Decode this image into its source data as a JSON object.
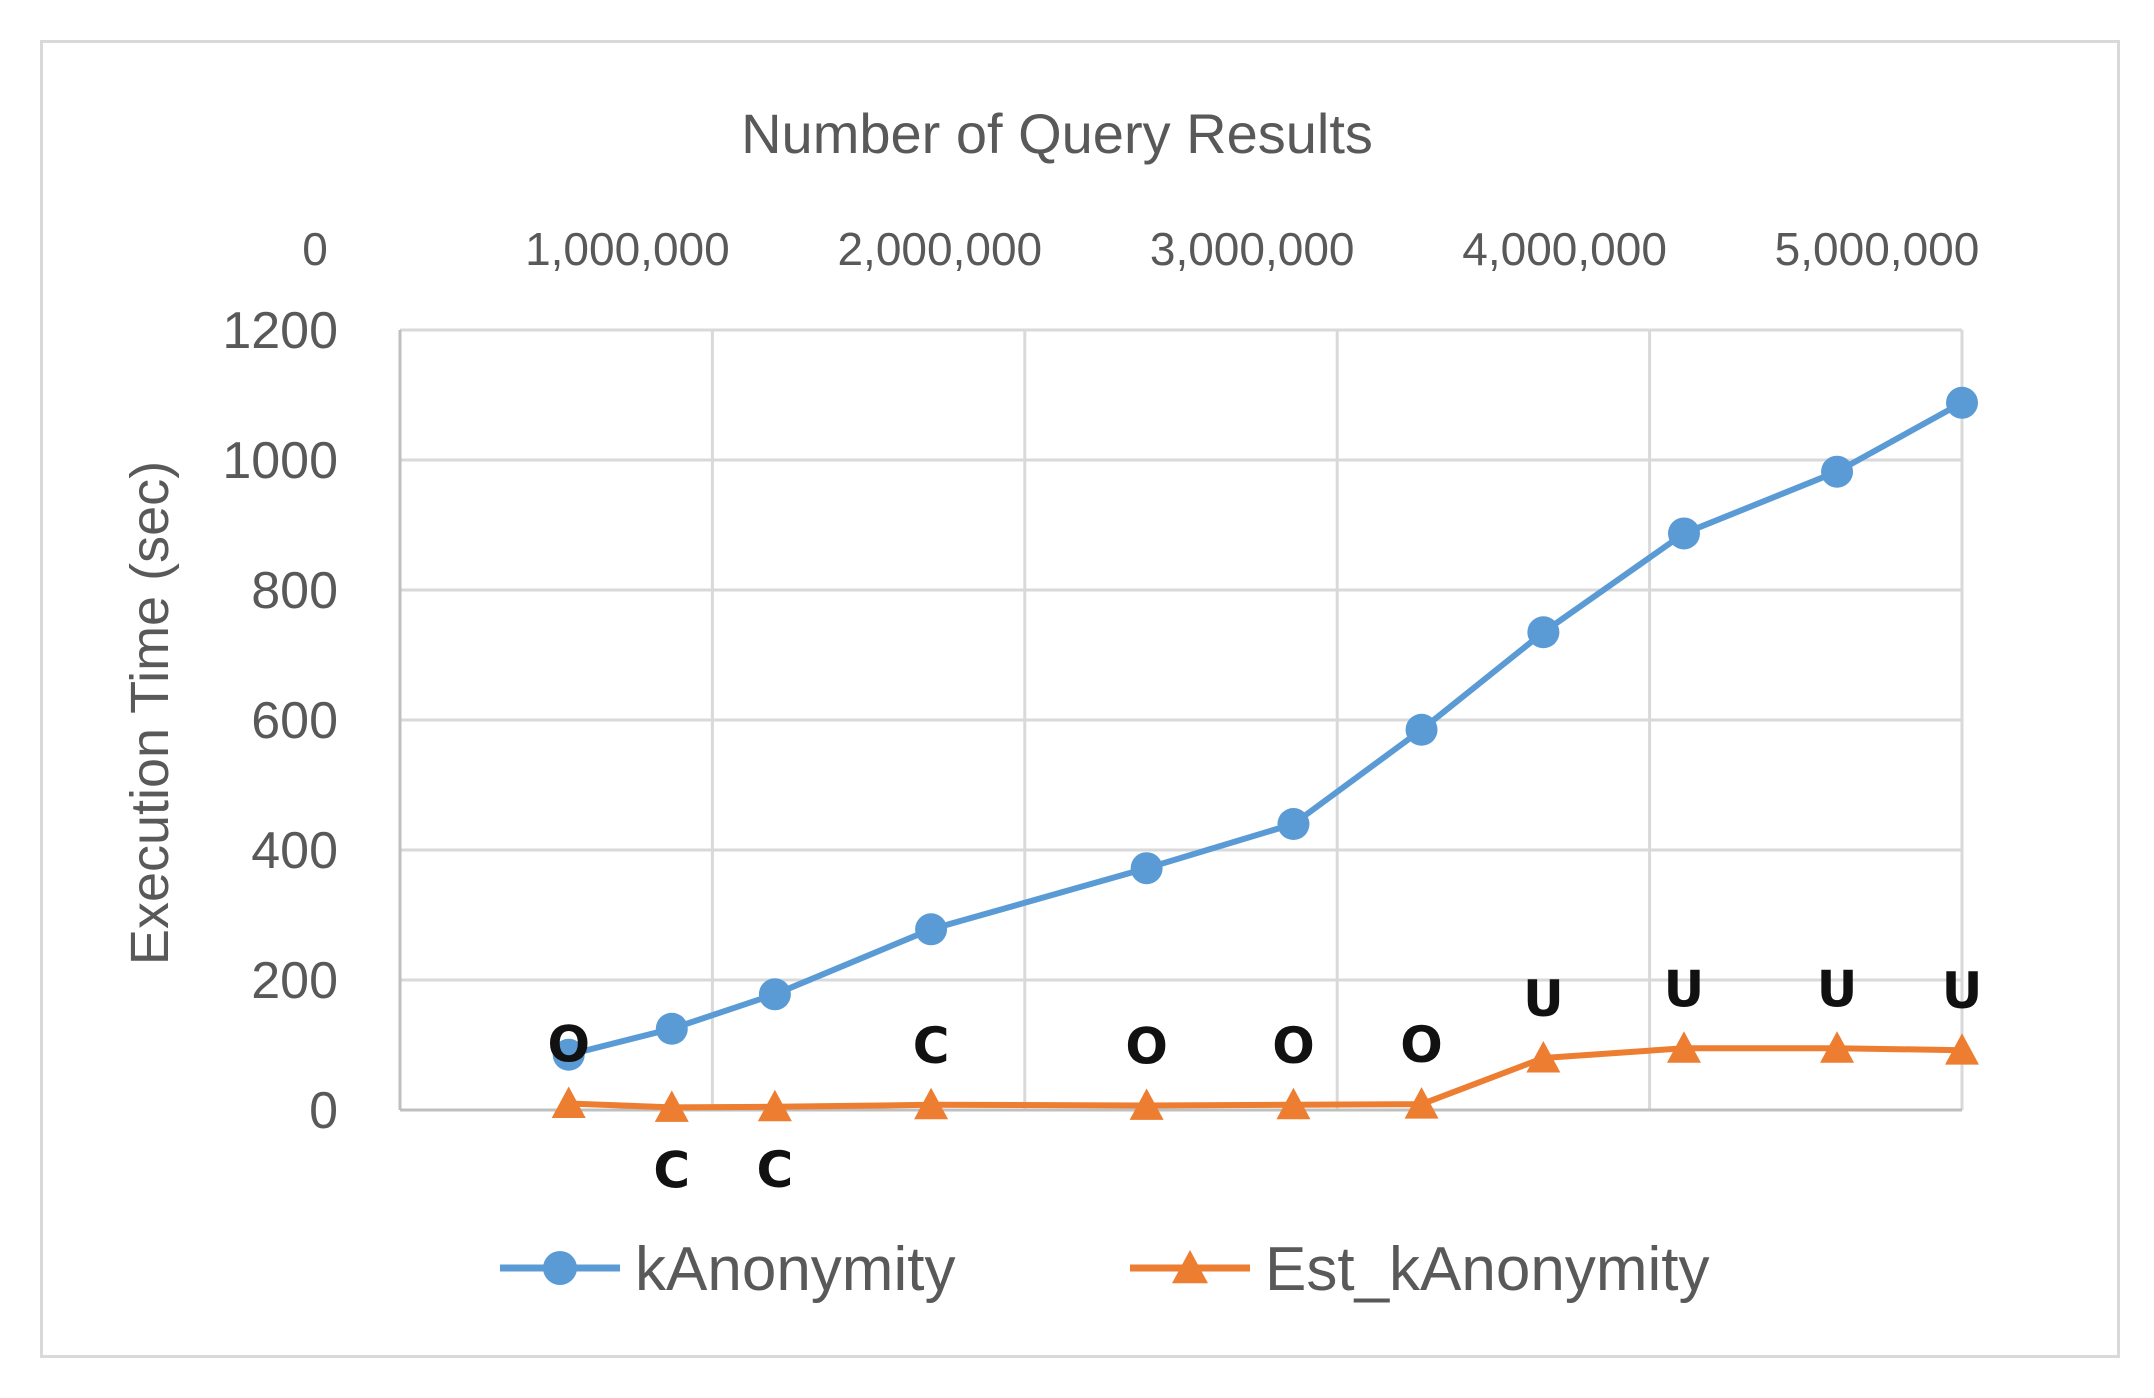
{
  "chart_data": {
    "type": "line",
    "title": "",
    "xlabel": "Number of Query Results",
    "ylabel": "Execution Time (sec)",
    "x_axis_position": "top",
    "xlim": [
      0,
      5000000
    ],
    "ylim": [
      0,
      1200
    ],
    "x_ticks": [
      "0",
      "1,000,000",
      "2,000,000",
      "3,000,000",
      "4,000,000",
      "5,000,000"
    ],
    "y_ticks": [
      "0",
      "200",
      "400",
      "600",
      "800",
      "1000",
      "1200"
    ],
    "grid": true,
    "legend_position": "bottom",
    "series": [
      {
        "name": "kAnonymity",
        "color": "#5b9bd5",
        "marker": "circle",
        "x": [
          540000,
          870000,
          1200000,
          1700000,
          2390000,
          2860000,
          3270000,
          3660000,
          4110000,
          4600000,
          5000000
        ],
        "y": [
          85,
          125,
          178,
          278,
          372,
          440,
          585,
          735,
          887,
          982,
          1088
        ]
      },
      {
        "name": "Est_kAnonymity",
        "color": "#ed7d31",
        "marker": "triangle",
        "x": [
          540000,
          870000,
          1200000,
          1700000,
          2390000,
          2860000,
          3270000,
          3660000,
          4110000,
          4600000,
          5000000
        ],
        "y": [
          10,
          4,
          5,
          8,
          7,
          8,
          9,
          80,
          95,
          95,
          92
        ],
        "annotations": [
          "O",
          "C",
          "C",
          "C",
          "O",
          "O",
          "O",
          "U",
          "U",
          "U",
          "U"
        ]
      }
    ]
  }
}
